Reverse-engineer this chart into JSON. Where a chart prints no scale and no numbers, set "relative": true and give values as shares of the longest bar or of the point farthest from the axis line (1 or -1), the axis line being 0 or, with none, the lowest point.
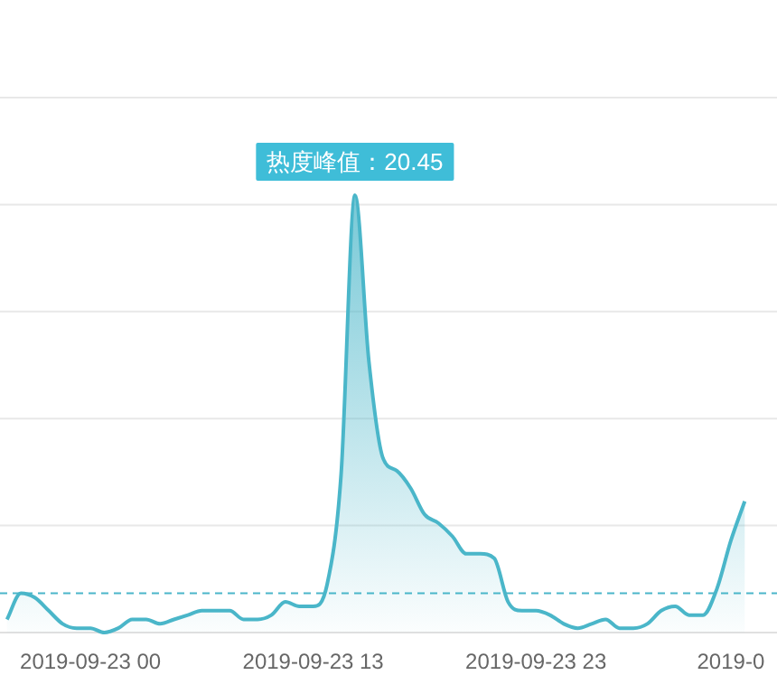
{
  "chart_data": {
    "type": "area",
    "relative": true,
    "color": "#4ab6c9",
    "grid": "y",
    "marker": "none",
    "categories": [
      null,
      null,
      null,
      null,
      null,
      null,
      "2019-09-23 00",
      null,
      null,
      null,
      null,
      null,
      null,
      null,
      null,
      null,
      null,
      null,
      null,
      null,
      null,
      null,
      "2019-09-23 13",
      null,
      null,
      null,
      null,
      null,
      null,
      null,
      null,
      null,
      null,
      null,
      null,
      null,
      null,
      null,
      "2019-09-23 23",
      null,
      null,
      null,
      null,
      null,
      null,
      null,
      null,
      null,
      null,
      null,
      null,
      null,
      "2019-0",
      null
    ],
    "values": [
      0.03,
      0.09,
      0.08,
      0.05,
      0.02,
      0.01,
      0.01,
      0.0,
      0.01,
      0.03,
      0.03,
      0.02,
      0.03,
      0.04,
      0.05,
      0.05,
      0.05,
      0.03,
      0.03,
      0.04,
      0.07,
      0.06,
      0.06,
      0.11,
      0.36,
      1,
      0.62,
      0.4,
      0.37,
      0.33,
      0.27,
      0.25,
      0.22,
      0.18,
      0.18,
      0.17,
      0.07,
      0.05,
      0.05,
      0.04,
      0.02,
      0.01,
      0.02,
      0.03,
      0.01,
      0.01,
      0.02,
      0.05,
      0.06,
      0.04,
      0.04,
      0.1,
      0.21,
      0.3
    ],
    "ref_lines": [
      {
        "axis": "y",
        "value": 0.09,
        "color": "#4ab6c9",
        "line_style": "dashed"
      }
    ],
    "annotations": [
      "热度峰值：20.45"
    ]
  }
}
